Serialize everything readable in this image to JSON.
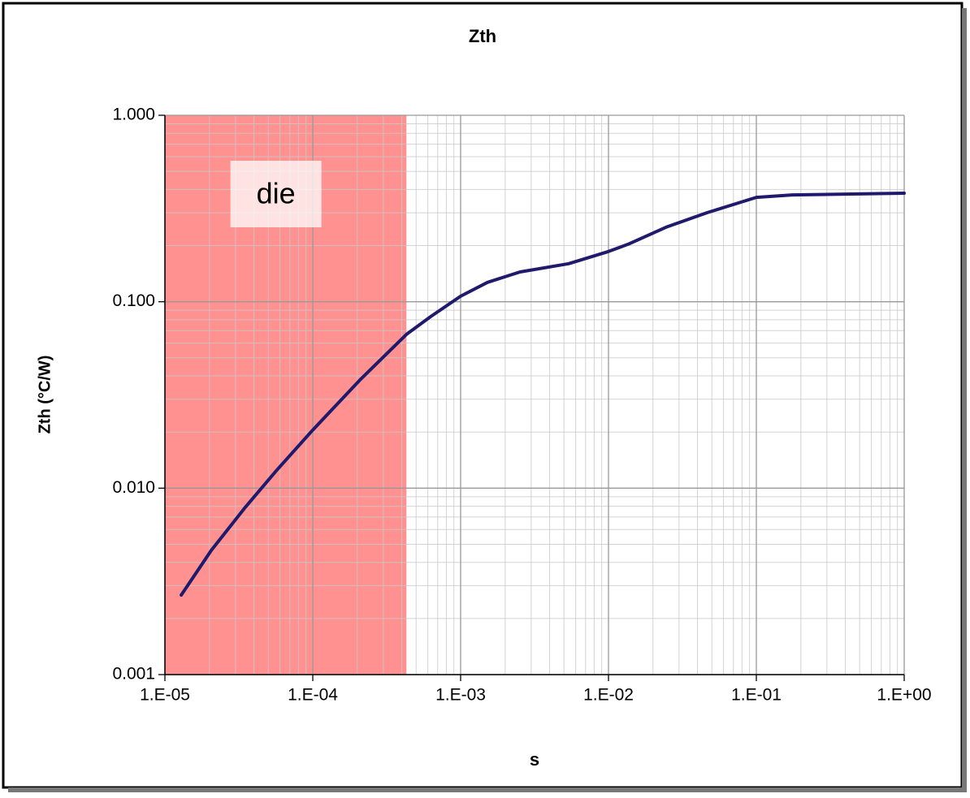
{
  "chart_data": {
    "type": "line",
    "title": "Zth",
    "x_label": "s",
    "y_label": "Zth (°C/W)",
    "x_scale": "log",
    "y_scale": "log",
    "grid": true,
    "xlim": [
      1e-05,
      1
    ],
    "ylim": [
      0.001,
      1
    ],
    "xticks": [
      {
        "value": 1e-05,
        "label": "1.E-05"
      },
      {
        "value": 0.0001,
        "label": "1.E-04"
      },
      {
        "value": 0.001,
        "label": "1.E-03"
      },
      {
        "value": 0.01,
        "label": "1.E-02"
      },
      {
        "value": 0.1,
        "label": "1.E-01"
      },
      {
        "value": 1,
        "label": "1.E+00"
      }
    ],
    "yticks": [
      {
        "value": 0.001,
        "label": "0.001"
      },
      {
        "value": 0.01,
        "label": "0.010"
      },
      {
        "value": 0.1,
        "label": "0.100"
      },
      {
        "value": 1,
        "label": "1.000"
      }
    ],
    "x": [
      1.29e-05,
      2.06e-05,
      3.5e-05,
      5.66e-05,
      0.0001,
      0.000208,
      0.00043,
      0.000627,
      0.001,
      0.00152,
      0.00252,
      0.00538,
      0.01,
      0.0139,
      0.0245,
      0.0462,
      0.1,
      0.175,
      1
    ],
    "series": [
      {
        "name": "Zth",
        "color": "#1f1a6b",
        "values": [
          0.00267,
          0.00464,
          0.0079,
          0.0124,
          0.0205,
          0.038,
          0.0668,
          0.0832,
          0.107,
          0.127,
          0.1445,
          0.16,
          0.186,
          0.205,
          0.251,
          0.3,
          0.363,
          0.374,
          0.382
        ]
      }
    ],
    "shaded_region": {
      "xlim": [
        1e-05,
        0.00043
      ],
      "label": "die",
      "color": "#ff9191"
    }
  }
}
